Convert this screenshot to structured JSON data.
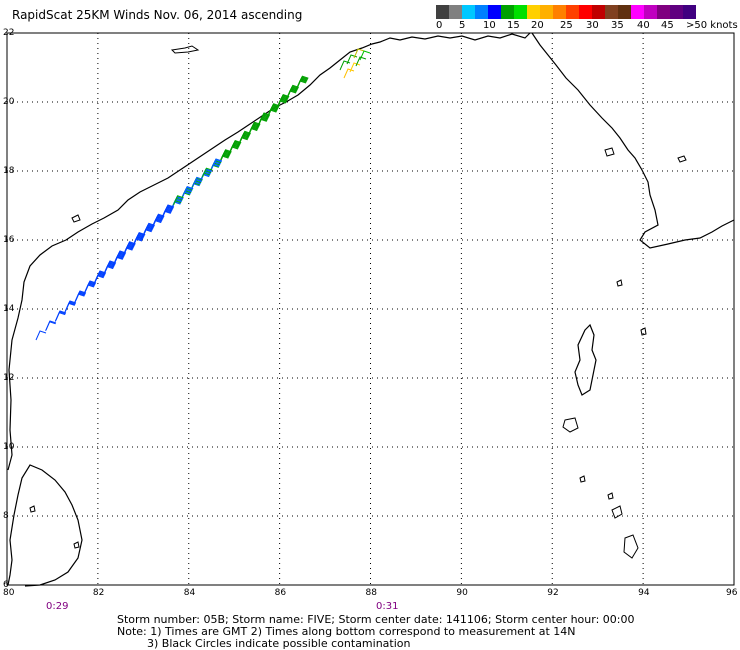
{
  "title": "RapidScat 25KM Winds Nov. 06, 2014 ascending",
  "legend": {
    "colors": [
      "#404040",
      "#808080",
      "#00c8ff",
      "#0080ff",
      "#0000ff",
      "#00a000",
      "#00e000",
      "#ffd000",
      "#ffb000",
      "#ff8000",
      "#ff4000",
      "#ff0000",
      "#c00000",
      "#804020",
      "#603010",
      "#ff00ff",
      "#c000c0",
      "#800080",
      "#600080",
      "#400080"
    ],
    "labels": [
      "0",
      "5",
      "10",
      "15",
      "20",
      "25",
      "30",
      "35",
      "40",
      "45",
      ">50 knots"
    ]
  },
  "axes": {
    "lat_ticks": [
      "22",
      "20",
      "18",
      "16",
      "14",
      "12",
      "10",
      "8",
      "6"
    ],
    "lon_ticks": [
      "80",
      "82",
      "84",
      "86",
      "88",
      "90",
      "92",
      "94",
      "96"
    ]
  },
  "times": [
    "0:29",
    "0:31"
  ],
  "footer": {
    "line1": "Storm number: 05B;  Storm name: FIVE;  Storm center date: 141106;  Storm center hour: 00:00",
    "line2": "Note: 1) Times are GMT  2) Times along bottom correspond to measurement at 14N",
    "line3": "3) Black Circles indicate possible contamination"
  }
}
